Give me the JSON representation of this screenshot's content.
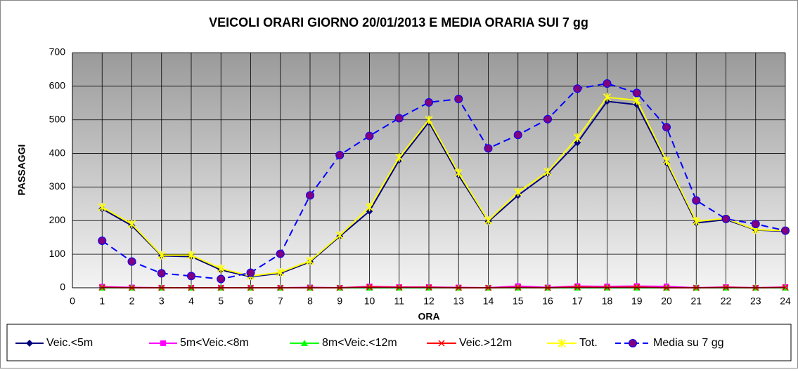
{
  "chart_data": {
    "type": "line",
    "title": "VEICOLI ORARI GIORNO 20/01/2013 E MEDIA ORARIA SUI 7 gg",
    "x_label": "ORA",
    "y_label": "PASSAGGI",
    "x": [
      1,
      2,
      3,
      4,
      5,
      6,
      7,
      8,
      9,
      10,
      11,
      12,
      13,
      14,
      15,
      16,
      17,
      18,
      19,
      20,
      21,
      22,
      23,
      24
    ],
    "xlim": [
      0,
      24
    ],
    "xticks": [
      0,
      1,
      2,
      3,
      4,
      5,
      6,
      7,
      8,
      9,
      10,
      11,
      12,
      13,
      14,
      15,
      16,
      17,
      18,
      19,
      20,
      21,
      22,
      23,
      24
    ],
    "ylim": [
      0,
      700
    ],
    "yticks": [
      0,
      100,
      200,
      300,
      400,
      500,
      600,
      700
    ],
    "grid": true,
    "legend": "bottom",
    "series": [
      {
        "name": "Veic.<5m",
        "color": "#000080",
        "marker": "diamond",
        "dashed": false,
        "values": [
          235,
          185,
          95,
          93,
          53,
          33,
          43,
          77,
          153,
          228,
          380,
          493,
          335,
          197,
          275,
          340,
          432,
          555,
          545,
          372,
          193,
          203,
          172,
          168
        ]
      },
      {
        "name": "5m<Veic.<8m",
        "color": "#ff00ff",
        "marker": "square",
        "dashed": false,
        "values": [
          3,
          1,
          0,
          0,
          0,
          0,
          0,
          1,
          0,
          4,
          2,
          2,
          1,
          0,
          5,
          1,
          5,
          4,
          5,
          4,
          0,
          2,
          0,
          2
        ]
      },
      {
        "name": "8m<Veic.<12m",
        "color": "#00ff00",
        "marker": "triangle",
        "dashed": false,
        "values": [
          0,
          0,
          0,
          0,
          0,
          0,
          0,
          0,
          0,
          0,
          0,
          0,
          0,
          0,
          0,
          0,
          0,
          0,
          0,
          0,
          0,
          0,
          0,
          0
        ]
      },
      {
        "name": "Veic.>12m",
        "color": "#ff0000",
        "marker": "cross",
        "dashed": false,
        "values": [
          1,
          0,
          0,
          0,
          0,
          0,
          0,
          0,
          0,
          2,
          1,
          1,
          0,
          0,
          1,
          0,
          2,
          1,
          2,
          0,
          0,
          1,
          0,
          1
        ]
      },
      {
        "name": "Tot.",
        "color": "#ffff00",
        "marker": "star",
        "dashed": false,
        "values": [
          240,
          190,
          97,
          97,
          57,
          35,
          46,
          80,
          156,
          240,
          388,
          500,
          342,
          200,
          285,
          345,
          447,
          567,
          558,
          378,
          198,
          206,
          173,
          170
        ]
      },
      {
        "name": "Media su 7 gg",
        "color": "#0000ff",
        "marker": "circle",
        "dashed": true,
        "values": [
          140,
          78,
          43,
          35,
          26,
          45,
          101,
          275,
          395,
          452,
          505,
          552,
          562,
          415,
          455,
          502,
          593,
          608,
          580,
          478,
          260,
          205,
          190,
          170
        ]
      }
    ]
  }
}
